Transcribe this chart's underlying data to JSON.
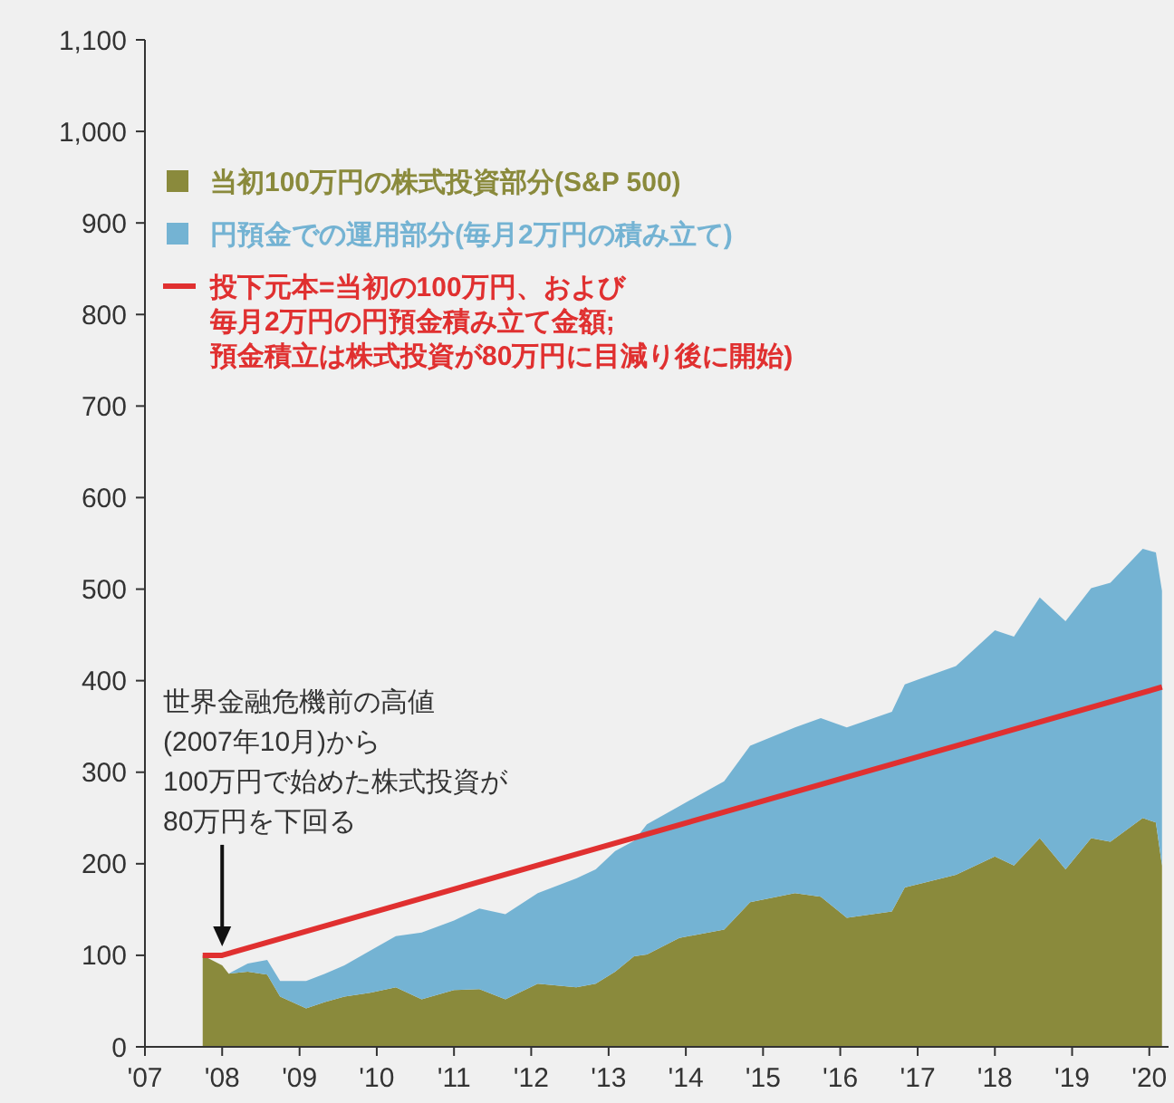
{
  "chart_data": {
    "type": "area",
    "stacked": true,
    "legend": "top left",
    "grid": false,
    "x": [
      "2007-10",
      "2008-01",
      "2008-02",
      "2008-05",
      "2008-08",
      "2008-10",
      "2009-02",
      "2009-05",
      "2009-08",
      "2009-12",
      "2010-04",
      "2010-08",
      "2011-01",
      "2011-05",
      "2011-09",
      "2012-02",
      "2012-08",
      "2012-11",
      "2013-02",
      "2013-05",
      "2013-07",
      "2013-12",
      "2014-07",
      "2014-11",
      "2015-06",
      "2015-10",
      "2016-02",
      "2016-09",
      "2016-11",
      "2017-07",
      "2018-01",
      "2018-04",
      "2018-08",
      "2018-12",
      "2019-04",
      "2019-07",
      "2019-12",
      "2020-02",
      "2020-03"
    ],
    "series": [
      {
        "name": "当初100万円の株式投資部分(S&P 500)",
        "color": "#8a8a3c",
        "values": [
          100,
          89,
          80,
          82,
          79,
          55,
          42,
          49,
          55,
          59,
          65,
          52,
          62,
          63,
          52,
          69,
          65,
          69,
          82,
          99,
          101,
          119,
          128,
          158,
          168,
          164,
          141,
          148,
          174,
          188,
          208,
          198,
          228,
          194,
          228,
          224,
          250,
          245,
          198
        ]
      },
      {
        "name": "円預金での運用部分(毎月2万円の積み立て)",
        "color": "#74b3d3",
        "values": [
          0,
          0,
          0,
          9,
          16,
          17,
          30,
          31,
          34,
          46,
          56,
          73,
          76,
          88,
          93,
          99,
          119,
          125,
          132,
          126,
          142,
          144,
          162,
          171,
          181,
          195,
          208,
          218,
          222,
          228,
          247,
          250,
          263,
          271,
          273,
          283,
          294,
          295,
          300
        ]
      },
      {
        "name": "投下元本=当初の100万円、および毎月2万円の円預金積み立て金額;預金積立は株式投資が80万円に目減り後に開始)",
        "type": "line",
        "color": "#e03030",
        "x": [
          "2007-10",
          "2008-01",
          "2020-03"
        ],
        "values": [
          100,
          100,
          393
        ]
      }
    ],
    "ylim": [
      0,
      1100
    ],
    "yticks": [
      0,
      {
        "value": 100,
        "label": "100"
      },
      200,
      300,
      400,
      500,
      600,
      700,
      800,
      900,
      {
        "value": 1000,
        "label": "1,000"
      },
      {
        "value": 1100,
        "label": "1,100"
      }
    ],
    "xlim": [
      "2007-01",
      "2020-04"
    ],
    "xticks": [
      {
        "value": "2007-01",
        "label": "'07"
      },
      {
        "value": "2008-01",
        "label": "'08"
      },
      {
        "value": "2009-01",
        "label": "'09"
      },
      {
        "value": "2010-01",
        "label": "'10"
      },
      {
        "value": "2011-01",
        "label": "'11"
      },
      {
        "value": "2012-01",
        "label": "'12"
      },
      {
        "value": "2013-01",
        "label": "'13"
      },
      {
        "value": "2014-01",
        "label": "'14"
      },
      {
        "value": "2015-01",
        "label": "'15"
      },
      {
        "value": "2016-01",
        "label": "'16"
      },
      {
        "value": "2017-01",
        "label": "'17"
      },
      {
        "value": "2018-01",
        "label": "'18"
      },
      {
        "value": "2019-01",
        "label": "'19"
      },
      {
        "value": "2020-01",
        "label": "'20"
      }
    ],
    "annotations": [
      "世界金融危機前の高値(2007年10月)から100万円で始めた株式投資が80万円を下回る"
    ]
  }
}
